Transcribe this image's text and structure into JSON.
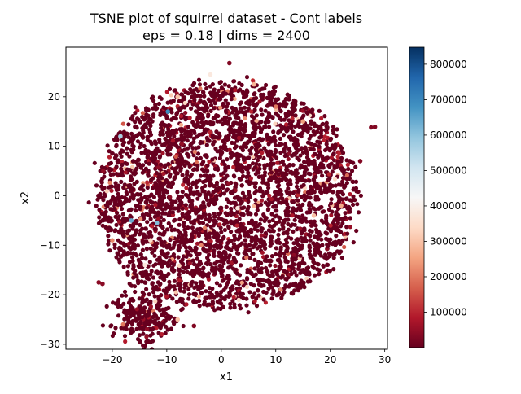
{
  "chart_data": {
    "type": "scatter",
    "title_line1": "TSNE plot of squirrel dataset - Cont labels",
    "title_line2": "eps = 0.18 | dims = 2400",
    "xlabel": "x1",
    "ylabel": "x2",
    "xlim": [
      -28.5,
      30.5
    ],
    "ylim": [
      -31,
      30
    ],
    "xticks": [
      -20,
      -10,
      0,
      10,
      20,
      30
    ],
    "yticks": [
      -30,
      -20,
      -10,
      0,
      10,
      20
    ],
    "colorbar": {
      "colormap": "RdBu",
      "range": [
        0,
        848000
      ],
      "ticks": [
        100000,
        200000,
        300000,
        400000,
        500000,
        600000,
        700000,
        800000
      ],
      "tick_labels": [
        "100000",
        "200000",
        "300000",
        "400000",
        "500000",
        "600000",
        "700000",
        "800000"
      ]
    },
    "marker_color_dominant": "#67001f",
    "cluster_summary": [
      {
        "name": "main-cloud",
        "center": [
          1,
          0
        ],
        "spread": [
          12,
          12
        ]
      },
      {
        "name": "lower-left-blob",
        "center": [
          -14,
          -24
        ],
        "spread": [
          3,
          3
        ]
      }
    ],
    "points": [
      {
        "x": -9.8,
        "y": 17.0,
        "v": 690000
      },
      {
        "x": -18.5,
        "y": 12.0,
        "v": 560000
      },
      {
        "x": -16.5,
        "y": -5.0,
        "v": 640000
      },
      {
        "x": -11.8,
        "y": -5.5,
        "v": 610000
      },
      {
        "x": 3.0,
        "y": -2.5,
        "v": 380000
      },
      {
        "x": -2.0,
        "y": 24.5,
        "v": 380000
      },
      {
        "x": 27.5,
        "y": 13.8,
        "v": 30000
      },
      {
        "x": 28.2,
        "y": 13.9,
        "v": 30000
      },
      {
        "x": 25.5,
        "y": 7.0,
        "v": 30000
      },
      {
        "x": -22.5,
        "y": -17.5,
        "v": 40000
      },
      {
        "x": -21.8,
        "y": -17.8,
        "v": 40000
      },
      {
        "x": -5.0,
        "y": -26.3,
        "v": 30000
      },
      {
        "x": 1.5,
        "y": 26.8,
        "v": 30000
      },
      {
        "x": 6.0,
        "y": 22.5,
        "v": 280000
      },
      {
        "x": 10.0,
        "y": 18.0,
        "v": 200000
      },
      {
        "x": -8.0,
        "y": 20.0,
        "v": 300000
      },
      {
        "x": 15.0,
        "y": 15.0,
        "v": 250000
      },
      {
        "x": -20.0,
        "y": -9.0,
        "v": 220000
      },
      {
        "x": -13.0,
        "y": -9.0,
        "v": 350000
      },
      {
        "x": -14.0,
        "y": -14.0,
        "v": 380000
      },
      {
        "x": 17.0,
        "y": -4.0,
        "v": 300000
      },
      {
        "x": 22.0,
        "y": -2.0,
        "v": 260000
      },
      {
        "x": -18.0,
        "y": -26.0,
        "v": 200000
      },
      {
        "x": -8.0,
        "y": -25.0,
        "v": 300000
      }
    ]
  }
}
